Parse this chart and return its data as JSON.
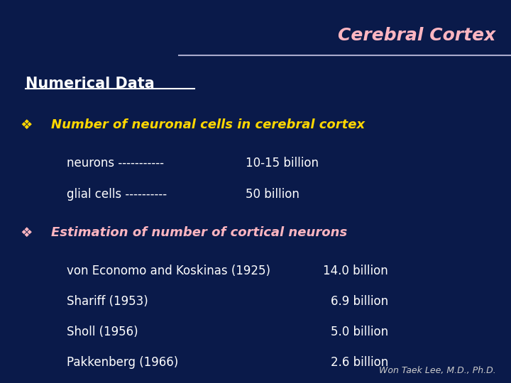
{
  "title": "Cerebral Cortex",
  "title_color": "#FFB6C1",
  "background_color": "#0a1a4a",
  "line_color": "#aaaacc",
  "section_title": "Numerical Data",
  "section_title_color": "#ffffff",
  "bullet1_symbol": "❖",
  "bullet1_color": "#FFD700",
  "bullet1_text": "Number of neuronal cells in cerebral cortex",
  "bullet1_text_color": "#FFD700",
  "row1_label": "neurons -----------",
  "row1_value": "10-15 billion",
  "row2_label": "glial cells ----------",
  "row2_value": "50 billion",
  "bullet2_symbol": "❖",
  "bullet2_color": "#FFB6C1",
  "bullet2_text": "Estimation of number of cortical neurons",
  "bullet2_text_color": "#FFB6C1",
  "estimation_rows": [
    {
      "label": "von Economo and Koskinas (1925)",
      "value": "14.0 billion"
    },
    {
      "label": "Shariff (1953)",
      "value": "6.9 billion"
    },
    {
      "label": "Sholl (1956)",
      "value": "5.0 billion"
    },
    {
      "label": "Pakkenberg (1966)",
      "value": "2.6 billion"
    }
  ],
  "estimation_label_color": "#ffffff",
  "estimation_value_color": "#ffffff",
  "body_text_color": "#ffffff",
  "footer": "Won Taek Lee, M.D., Ph.D.",
  "footer_color": "#cccccc"
}
